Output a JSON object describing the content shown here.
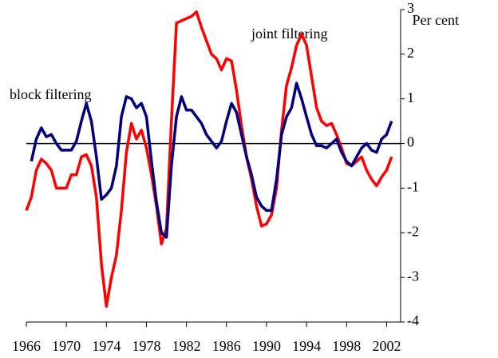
{
  "chart_data": {
    "type": "line",
    "annotations": [
      {
        "text": "Per cent"
      },
      {
        "text": "joint filtering",
        "color": "#ff0000"
      },
      {
        "text": "block filtering",
        "color": "#000080"
      }
    ],
    "x": [
      1966,
      1966.5,
      1967,
      1967.5,
      1968,
      1968.5,
      1969,
      1969.5,
      1970,
      1970.5,
      1971,
      1971.5,
      1972,
      1972.5,
      1973,
      1973.5,
      1974,
      1974.5,
      1975,
      1975.5,
      1976,
      1976.5,
      1977,
      1977.5,
      1978,
      1978.5,
      1979,
      1979.5,
      1980,
      1980.5,
      1981,
      1981.5,
      1982,
      1982.5,
      1983,
      1983.5,
      1984,
      1984.5,
      1985,
      1985.5,
      1986,
      1986.5,
      1987,
      1987.5,
      1988,
      1988.5,
      1989,
      1989.5,
      1990,
      1990.5,
      1991,
      1991.5,
      1992,
      1992.5,
      1993,
      1993.5,
      1994,
      1994.5,
      1995,
      1995.5,
      1996,
      1996.5,
      1997,
      1997.5,
      1998,
      1998.5,
      1999,
      1999.5,
      2000,
      2000.5,
      2001,
      2001.5,
      2002,
      2002.5
    ],
    "series": [
      {
        "name": "joint filtering",
        "color": "#ff0000",
        "values": [
          -1.5,
          -1.2,
          -0.6,
          -0.35,
          -0.45,
          -0.6,
          -1.0,
          -1.0,
          -1.0,
          -0.7,
          -0.7,
          -0.3,
          -0.25,
          -0.5,
          -1.2,
          -2.7,
          -3.65,
          -3.0,
          -2.5,
          -1.5,
          -0.2,
          0.45,
          0.1,
          0.3,
          -0.1,
          -0.7,
          -1.4,
          -2.25,
          -1.9,
          0.5,
          2.7,
          2.75,
          2.8,
          2.85,
          2.95,
          2.6,
          2.3,
          2.0,
          1.9,
          1.65,
          1.9,
          1.85,
          1.2,
          0.4,
          -0.3,
          -0.8,
          -1.4,
          -1.85,
          -1.8,
          -1.6,
          -1.0,
          0.3,
          1.3,
          1.7,
          2.2,
          2.45,
          2.2,
          1.5,
          0.8,
          0.5,
          0.4,
          0.45,
          0.2,
          -0.1,
          -0.45,
          -0.5,
          -0.4,
          -0.3,
          -0.6,
          -0.8,
          -0.95,
          -0.75,
          -0.6,
          -0.3
        ]
      },
      {
        "name": "block filtering",
        "color": "#000080",
        "values": [
          null,
          -0.4,
          0.1,
          0.35,
          0.15,
          0.2,
          0.0,
          -0.15,
          -0.15,
          -0.15,
          0.05,
          0.5,
          0.9,
          0.5,
          -0.3,
          -1.25,
          -1.15,
          -1.0,
          -0.5,
          0.6,
          1.05,
          1.0,
          0.8,
          0.9,
          0.6,
          -0.4,
          -1.3,
          -2.0,
          -2.1,
          -0.5,
          0.6,
          1.05,
          0.75,
          0.75,
          0.6,
          0.45,
          0.2,
          0.05,
          -0.1,
          0.05,
          0.5,
          0.9,
          0.7,
          0.2,
          -0.3,
          -0.7,
          -1.2,
          -1.4,
          -1.5,
          -1.5,
          -0.8,
          0.2,
          0.6,
          0.8,
          1.35,
          1.0,
          0.6,
          0.2,
          -0.05,
          -0.05,
          -0.1,
          0.0,
          0.1,
          -0.2,
          -0.4,
          -0.5,
          -0.3,
          -0.1,
          0.0,
          -0.15,
          -0.2,
          0.1,
          0.2,
          0.5
        ]
      }
    ],
    "xlim": [
      1966,
      2003.4
    ],
    "xticks": [
      1966,
      1970,
      1974,
      1978,
      1982,
      1986,
      1990,
      1994,
      1998,
      2002
    ],
    "ylim": [
      -4,
      3
    ],
    "yticks": [
      3,
      2,
      1,
      0,
      -1,
      -2,
      -3,
      -4
    ],
    "zero_line": true
  }
}
